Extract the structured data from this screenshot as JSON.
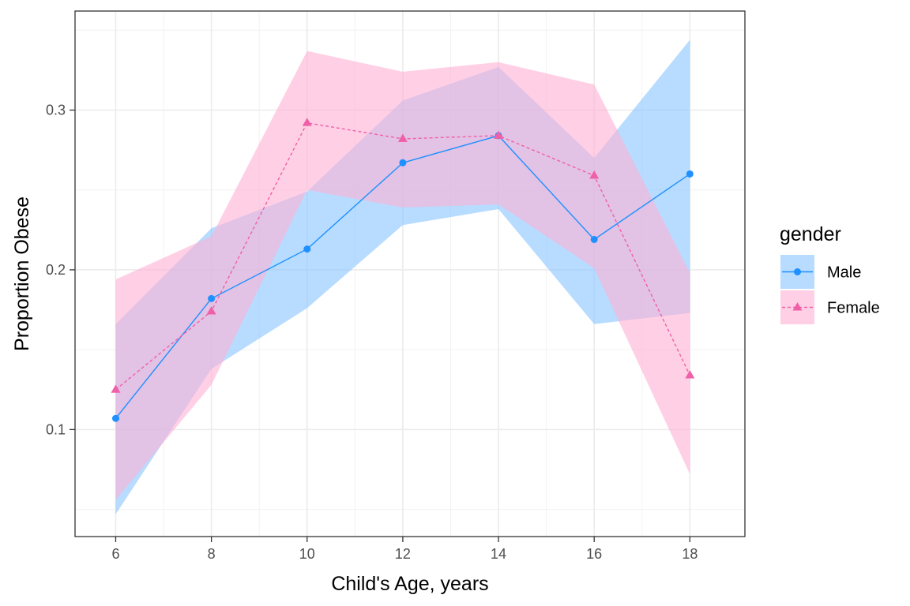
{
  "chart_data": {
    "type": "line",
    "title": "",
    "xlabel": "Child's Age, years",
    "ylabel": "Proportion Obese",
    "x": [
      6,
      8,
      10,
      12,
      14,
      16,
      18
    ],
    "x_ticks": [
      "6",
      "8",
      "10",
      "12",
      "14",
      "16",
      "18"
    ],
    "y_ticks": [
      "0.1",
      "0.2",
      "0.3"
    ],
    "xlim": [
      5.15,
      19.15
    ],
    "ylim": [
      0.033,
      0.362
    ],
    "grid": true,
    "legend": {
      "title": "gender",
      "position": "right"
    },
    "series": [
      {
        "name": "Male",
        "values": [
          0.107,
          0.182,
          0.213,
          0.267,
          0.284,
          0.219,
          0.26
        ],
        "lower": [
          0.047,
          0.138,
          0.176,
          0.228,
          0.238,
          0.166,
          0.173
        ],
        "upper": [
          0.166,
          0.226,
          0.249,
          0.306,
          0.327,
          0.27,
          0.344
        ],
        "color": "#1e90ff",
        "ribbon_color": "#87c4ff",
        "marker": "circle",
        "linestyle": "solid"
      },
      {
        "name": "Female",
        "values": [
          0.125,
          0.174,
          0.292,
          0.282,
          0.284,
          0.259,
          0.134
        ],
        "lower": [
          0.056,
          0.128,
          0.25,
          0.239,
          0.241,
          0.201,
          0.072
        ],
        "upper": [
          0.194,
          0.221,
          0.337,
          0.324,
          0.33,
          0.316,
          0.198
        ],
        "color": "#f060a8",
        "ribbon_color": "#ffb0d4",
        "marker": "triangle",
        "linestyle": "dashed"
      }
    ]
  }
}
